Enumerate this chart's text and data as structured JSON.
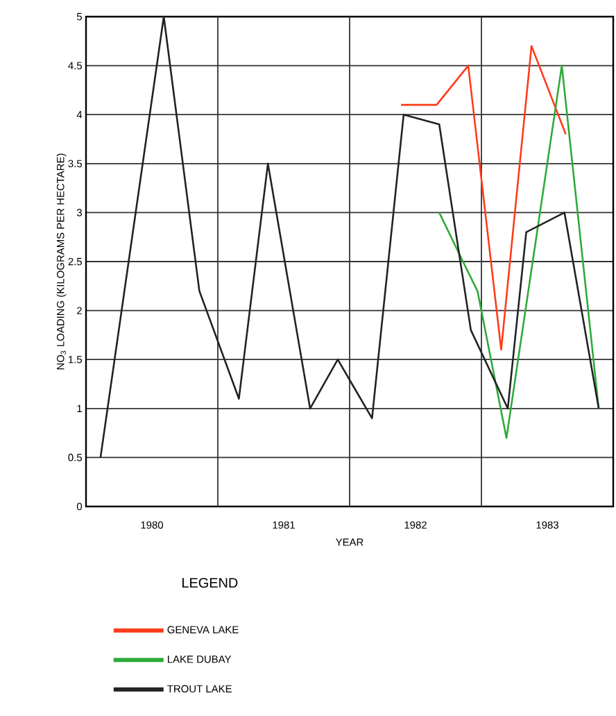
{
  "chart_data": {
    "type": "line",
    "xlabel": "YEAR",
    "ylabel": "NO$_{3}$ LOADING (KILOGRAMS PER HECTARE)",
    "legend_title": "LEGEND",
    "legend": "bottom",
    "grid": true,
    "xlim": [
      1980,
      1984
    ],
    "xticks": [
      {
        "value": 1980.5,
        "label": "1980"
      },
      {
        "value": 1981,
        "label": null
      },
      {
        "value": 1981.5,
        "label": "1981"
      },
      {
        "value": 1982,
        "label": null
      },
      {
        "value": 1982.5,
        "label": "1982"
      },
      {
        "value": 1983,
        "label": null
      },
      {
        "value": 1983.5,
        "label": "1983"
      }
    ],
    "ylim": [
      0,
      5
    ],
    "yticks": [
      0,
      0.5,
      1,
      1.5,
      2,
      2.5,
      3,
      3.5,
      4,
      4.5,
      5
    ],
    "series": [
      {
        "name": "GENEVA LAKE",
        "color": "#ff3b1a",
        "x": [
          1982.39,
          1982.66,
          1982.9,
          1983.15,
          1983.38,
          1983.64
        ],
        "values": [
          4.1,
          4.1,
          4.5,
          1.6,
          4.7,
          3.8
        ]
      },
      {
        "name": "LAKE DUBAY",
        "color": "#2eaa3a",
        "x": [
          1982.68,
          1982.86,
          1982.97,
          1983.19,
          1983.61,
          1983.89
        ],
        "values": [
          3.0,
          2.5,
          2.2,
          0.7,
          4.5,
          1.0
        ]
      },
      {
        "name": "TROUT LAKE",
        "color": "#222222",
        "x": [
          1980.11,
          1980.59,
          1980.86,
          1981.16,
          1981.38,
          1981.7,
          1981.91,
          1982.17,
          1982.41,
          1982.68,
          1982.92,
          1983.2,
          1983.34,
          1983.63,
          1983.89
        ],
        "values": [
          0.5,
          5.0,
          2.2,
          1.1,
          3.5,
          1.0,
          1.5,
          0.9,
          4.0,
          3.9,
          1.8,
          1.0,
          2.8,
          3.0,
          1.0
        ]
      }
    ]
  }
}
